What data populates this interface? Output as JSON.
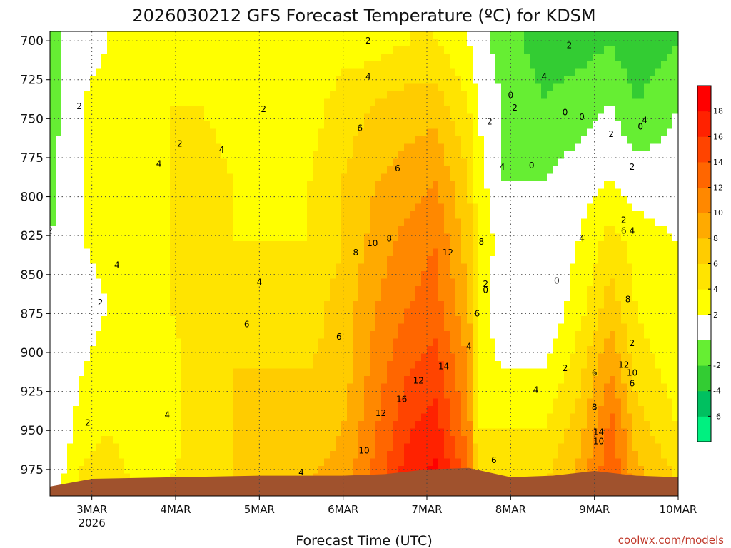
{
  "credit": "coolwx.com/models",
  "chart_data": {
    "type": "heatmap",
    "title": "2026030212 GFS Forecast Temperature (ºC) for KDSM",
    "xlabel": "Forecast Time (UTC)",
    "ylabel": "",
    "x_ticks": [
      {
        "t": 0.5,
        "label": "3MAR",
        "sub": "2026"
      },
      {
        "t": 1.5,
        "label": "4MAR",
        "sub": ""
      },
      {
        "t": 2.5,
        "label": "5MAR",
        "sub": ""
      },
      {
        "t": 3.5,
        "label": "6MAR",
        "sub": ""
      },
      {
        "t": 4.5,
        "label": "7MAR",
        "sub": ""
      },
      {
        "t": 5.5,
        "label": "8MAR",
        "sub": ""
      },
      {
        "t": 6.5,
        "label": "9MAR",
        "sub": ""
      },
      {
        "t": 7.5,
        "label": "10MAR",
        "sub": ""
      }
    ],
    "xlim": [
      0,
      7.5
    ],
    "y_ticks": [
      700,
      725,
      750,
      775,
      800,
      825,
      850,
      875,
      900,
      925,
      950,
      975
    ],
    "ylim": [
      694,
      992
    ],
    "colorbar": {
      "levels": [
        -7,
        -6,
        -4,
        -2,
        0,
        2,
        4,
        6,
        8,
        10,
        12,
        14,
        16,
        18,
        19
      ],
      "tick_labels": [
        -6,
        -4,
        -2,
        2,
        4,
        6,
        8,
        10,
        12,
        14,
        16,
        18
      ],
      "colors": [
        "#00f080",
        "#00c060",
        "#33cc33",
        "#66ee33",
        "#ffffff",
        "#ffff00",
        "#ffe400",
        "#ffcc00",
        "#ffaa00",
        "#ff8800",
        "#ff6600",
        "#ff4400",
        "#ff2200",
        "#ff0000"
      ]
    },
    "column_profiles": [
      {
        "t": 0.0,
        "p": [
          700,
          740,
          790,
          830,
          870,
          910,
          960,
          985
        ],
        "v": [
          -2,
          -1,
          -1,
          0,
          0,
          0,
          0,
          0
        ]
      },
      {
        "t": 0.15,
        "p": [
          700,
          740,
          790,
          830,
          870,
          910,
          950,
          985
        ],
        "v": [
          0,
          0,
          1,
          1,
          0,
          1,
          1,
          2
        ]
      },
      {
        "t": 0.4,
        "p": [
          700,
          740,
          790,
          830,
          870,
          910,
          950,
          985
        ],
        "v": [
          1,
          2,
          2,
          2,
          1,
          2,
          3,
          5
        ]
      },
      {
        "t": 0.7,
        "p": [
          700,
          740,
          790,
          830,
          870,
          910,
          950,
          985
        ],
        "v": [
          2,
          3,
          3,
          3,
          2,
          3,
          4,
          5
        ]
      },
      {
        "t": 1.0,
        "p": [
          700,
          740,
          790,
          830,
          870,
          910,
          950,
          985
        ],
        "v": [
          2,
          2,
          3,
          3,
          2,
          2,
          3,
          4
        ]
      },
      {
        "t": 1.4,
        "p": [
          700,
          740,
          790,
          830,
          870,
          910,
          950,
          985
        ],
        "v": [
          3,
          4,
          4,
          4,
          4,
          3,
          3,
          4
        ]
      },
      {
        "t": 1.8,
        "p": [
          700,
          740,
          790,
          830,
          870,
          910,
          950,
          985
        ],
        "v": [
          3,
          4,
          5,
          5,
          5,
          5,
          5,
          5
        ]
      },
      {
        "t": 2.2,
        "p": [
          700,
          740,
          790,
          830,
          870,
          910,
          950,
          985
        ],
        "v": [
          3,
          3,
          4,
          4,
          5,
          6,
          6,
          6
        ]
      },
      {
        "t": 2.7,
        "p": [
          700,
          740,
          790,
          830,
          870,
          910,
          950,
          985
        ],
        "v": [
          2,
          3,
          3,
          4,
          5,
          6,
          6,
          7
        ]
      },
      {
        "t": 3.1,
        "p": [
          700,
          740,
          790,
          830,
          870,
          910,
          950,
          985
        ],
        "v": [
          2,
          3,
          4,
          4,
          5,
          6,
          7,
          8
        ]
      },
      {
        "t": 3.5,
        "p": [
          700,
          740,
          790,
          830,
          870,
          910,
          950,
          985
        ],
        "v": [
          3,
          5,
          6,
          6,
          7,
          7,
          8,
          9
        ]
      },
      {
        "t": 3.9,
        "p": [
          700,
          740,
          790,
          830,
          870,
          910,
          950,
          985
        ],
        "v": [
          3,
          6,
          8,
          9,
          10,
          11,
          12,
          13
        ]
      },
      {
        "t": 4.3,
        "p": [
          700,
          740,
          790,
          830,
          870,
          910,
          950,
          985
        ],
        "v": [
          4,
          7,
          9,
          11,
          12,
          14,
          16,
          18
        ]
      },
      {
        "t": 4.6,
        "p": [
          700,
          740,
          790,
          830,
          870,
          910,
          950,
          985
        ],
        "v": [
          4,
          7,
          10,
          12,
          13,
          15,
          17,
          19
        ]
      },
      {
        "t": 5.0,
        "p": [
          700,
          740,
          790,
          830,
          870,
          910,
          950,
          985
        ],
        "v": [
          2,
          4,
          6,
          7,
          8,
          10,
          11,
          13
        ]
      },
      {
        "t": 5.1,
        "p": [
          700,
          740,
          790,
          830,
          870,
          910,
          950,
          985
        ],
        "v": [
          1,
          2,
          3,
          4,
          4,
          3,
          4,
          6
        ]
      },
      {
        "t": 5.4,
        "p": [
          700,
          740,
          790,
          830,
          870,
          910,
          950,
          985
        ],
        "v": [
          -1,
          0,
          0,
          1,
          0,
          2,
          4,
          6
        ]
      },
      {
        "t": 5.9,
        "p": [
          700,
          740,
          790,
          830,
          870,
          910,
          950,
          985
        ],
        "v": [
          -3,
          -2,
          0,
          0,
          0,
          2,
          4,
          6
        ]
      },
      {
        "t": 6.3,
        "p": [
          700,
          740,
          790,
          830,
          870,
          910,
          950,
          985
        ],
        "v": [
          -3,
          -1,
          1,
          2,
          3,
          5,
          7,
          9
        ]
      },
      {
        "t": 6.7,
        "p": [
          700,
          740,
          790,
          830,
          870,
          910,
          950,
          985
        ],
        "v": [
          -2,
          0,
          2,
          5,
          7,
          10,
          13,
          14
        ]
      },
      {
        "t": 7.0,
        "p": [
          700,
          740,
          790,
          830,
          870,
          910,
          950,
          985
        ],
        "v": [
          -4,
          -2,
          1,
          3,
          4,
          5,
          7,
          9
        ]
      },
      {
        "t": 7.5,
        "p": [
          700,
          740,
          790,
          830,
          870,
          910,
          950,
          985
        ],
        "v": [
          -2,
          0,
          1,
          2,
          2,
          3,
          4,
          6
        ]
      }
    ],
    "terrain": {
      "t": [
        0,
        0.5,
        1.5,
        2.5,
        3.5,
        4.0,
        4.5,
        5.0,
        5.5,
        6.0,
        6.5,
        7.0,
        7.5
      ],
      "p": [
        986,
        981,
        980,
        979,
        979,
        978,
        975,
        974,
        980,
        979,
        976,
        979,
        980
      ]
    },
    "contour_labels": [
      {
        "t": 0.35,
        "p": 742,
        "text": "2"
      },
      {
        "t": 0.0,
        "p": 822,
        "text": "2"
      },
      {
        "t": 0.6,
        "p": 868,
        "text": "2"
      },
      {
        "t": 0.45,
        "p": 945,
        "text": "2"
      },
      {
        "t": 0.8,
        "p": 844,
        "text": "4"
      },
      {
        "t": 1.3,
        "p": 779,
        "text": "4"
      },
      {
        "t": 2.05,
        "p": 770,
        "text": "4"
      },
      {
        "t": 1.55,
        "p": 766,
        "text": "2"
      },
      {
        "t": 2.55,
        "p": 744,
        "text": "2"
      },
      {
        "t": 2.5,
        "p": 855,
        "text": "4"
      },
      {
        "t": 2.35,
        "p": 882,
        "text": "6"
      },
      {
        "t": 3.45,
        "p": 890,
        "text": "6"
      },
      {
        "t": 3.0,
        "p": 977,
        "text": "4"
      },
      {
        "t": 1.4,
        "p": 940,
        "text": "4"
      },
      {
        "t": 3.8,
        "p": 700,
        "text": "2"
      },
      {
        "t": 3.8,
        "p": 723,
        "text": "4"
      },
      {
        "t": 3.7,
        "p": 756,
        "text": "6"
      },
      {
        "t": 4.15,
        "p": 782,
        "text": "6"
      },
      {
        "t": 3.65,
        "p": 836,
        "text": "8"
      },
      {
        "t": 4.05,
        "p": 827,
        "text": "8"
      },
      {
        "t": 3.85,
        "p": 830,
        "text": "10"
      },
      {
        "t": 4.75,
        "p": 836,
        "text": "12"
      },
      {
        "t": 4.4,
        "p": 918,
        "text": "12"
      },
      {
        "t": 3.95,
        "p": 939,
        "text": "12"
      },
      {
        "t": 4.2,
        "p": 930,
        "text": "16"
      },
      {
        "t": 4.7,
        "p": 909,
        "text": "14"
      },
      {
        "t": 3.75,
        "p": 963,
        "text": "10"
      },
      {
        "t": 5.15,
        "p": 829,
        "text": "8"
      },
      {
        "t": 5.1,
        "p": 875,
        "text": "6"
      },
      {
        "t": 5.0,
        "p": 896,
        "text": "4"
      },
      {
        "t": 5.2,
        "p": 856,
        "text": "2"
      },
      {
        "t": 5.2,
        "p": 860,
        "text": "0"
      },
      {
        "t": 5.25,
        "p": 752,
        "text": "2"
      },
      {
        "t": 5.4,
        "p": 781,
        "text": "4"
      },
      {
        "t": 5.5,
        "p": 735,
        "text": "0"
      },
      {
        "t": 6.2,
        "p": 703,
        "text": "2"
      },
      {
        "t": 5.9,
        "p": 723,
        "text": "4"
      },
      {
        "t": 5.55,
        "p": 743,
        "text": "2"
      },
      {
        "t": 6.15,
        "p": 746,
        "text": "0"
      },
      {
        "t": 5.75,
        "p": 780,
        "text": "0"
      },
      {
        "t": 6.35,
        "p": 749,
        "text": "0"
      },
      {
        "t": 7.1,
        "p": 751,
        "text": "4"
      },
      {
        "t": 6.7,
        "p": 760,
        "text": "2"
      },
      {
        "t": 7.05,
        "p": 755,
        "text": "0"
      },
      {
        "t": 6.95,
        "p": 781,
        "text": "2"
      },
      {
        "t": 6.85,
        "p": 815,
        "text": "2"
      },
      {
        "t": 6.35,
        "p": 827,
        "text": "4"
      },
      {
        "t": 6.85,
        "p": 822,
        "text": "6"
      },
      {
        "t": 6.95,
        "p": 822,
        "text": "4"
      },
      {
        "t": 6.05,
        "p": 854,
        "text": "0"
      },
      {
        "t": 6.15,
        "p": 910,
        "text": "2"
      },
      {
        "t": 6.95,
        "p": 894,
        "text": "2"
      },
      {
        "t": 6.9,
        "p": 866,
        "text": "8"
      },
      {
        "t": 6.5,
        "p": 913,
        "text": "6"
      },
      {
        "t": 6.5,
        "p": 935,
        "text": "8"
      },
      {
        "t": 6.55,
        "p": 951,
        "text": "14"
      },
      {
        "t": 6.85,
        "p": 908,
        "text": "12"
      },
      {
        "t": 6.95,
        "p": 913,
        "text": "10"
      },
      {
        "t": 6.95,
        "p": 920,
        "text": "6"
      },
      {
        "t": 6.55,
        "p": 957,
        "text": "10"
      },
      {
        "t": 5.8,
        "p": 924,
        "text": "4"
      },
      {
        "t": 5.3,
        "p": 969,
        "text": "6"
      }
    ]
  }
}
